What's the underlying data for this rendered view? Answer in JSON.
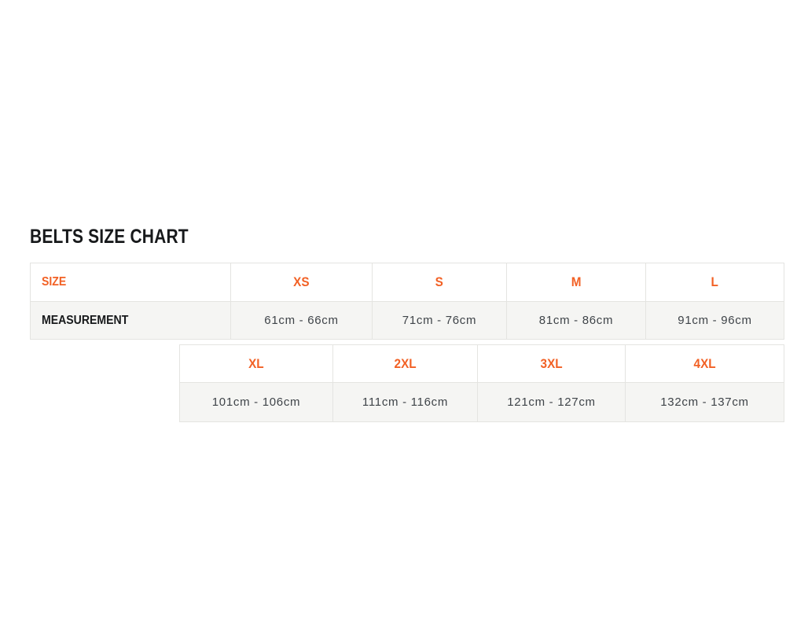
{
  "size_chart": {
    "title": "BELTS SIZE CHART",
    "size_row_label": "SIZE",
    "measurement_row_label": "MEASUREMENT",
    "rows": [
      {
        "size": "XS",
        "measurement": "61cm - 66cm"
      },
      {
        "size": "S",
        "measurement": "71cm - 76cm"
      },
      {
        "size": "M",
        "measurement": "81cm - 86cm"
      },
      {
        "size": "L",
        "measurement": "91cm - 96cm"
      },
      {
        "size": "XL",
        "measurement": "101cm - 106cm"
      },
      {
        "size": "2XL",
        "measurement": "111cm - 116cm"
      },
      {
        "size": "3XL",
        "measurement": "121cm - 127cm"
      },
      {
        "size": "4XL",
        "measurement": "132cm - 137cm"
      }
    ]
  },
  "colors": {
    "accent_orange": "#F26125",
    "heading_text": "#17191B",
    "measurement_text": "#3F4449",
    "table_border": "#E4E4E1",
    "measurement_row_background": "#F5F5F3",
    "header_row_background": "#FFFFFF",
    "page_background": "#FFFFFF"
  }
}
